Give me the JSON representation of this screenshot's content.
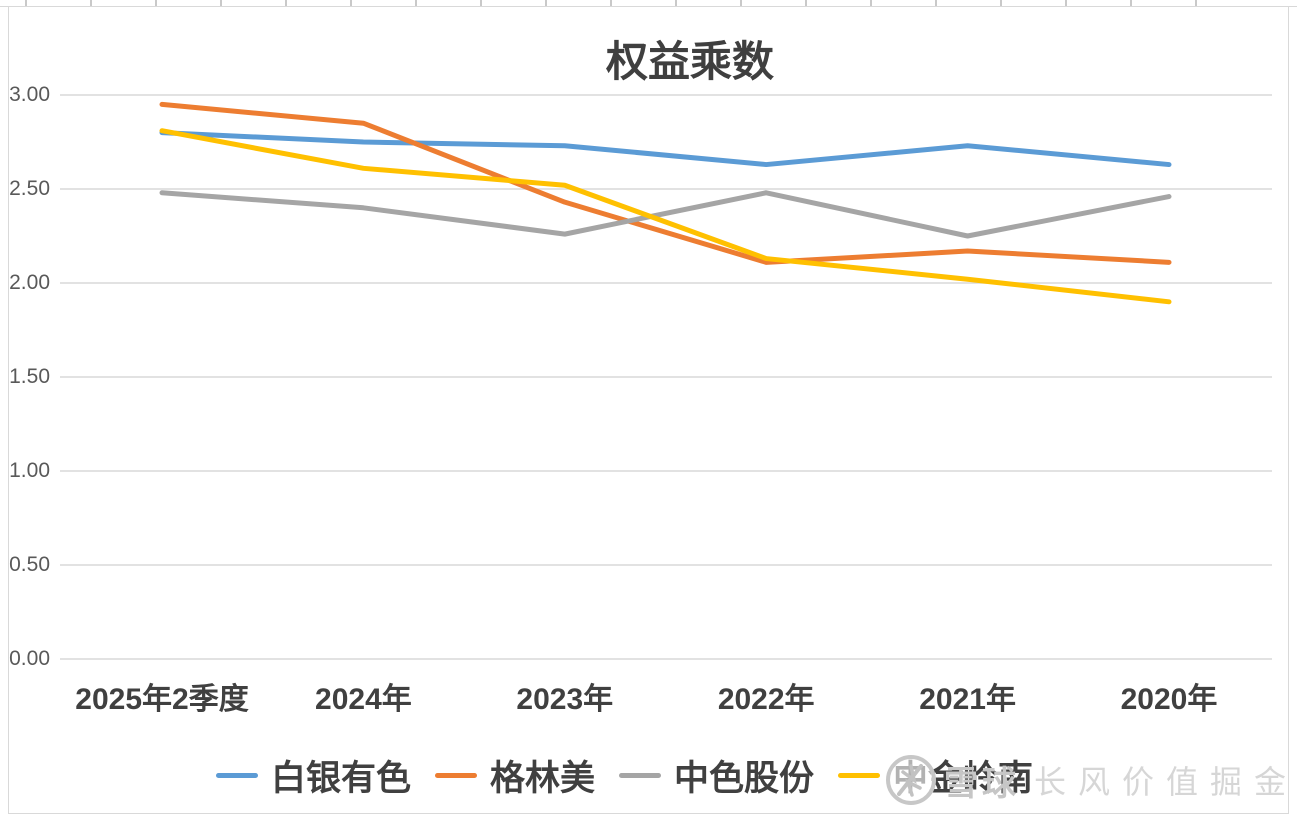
{
  "chart_data": {
    "type": "line",
    "title": "权益乘数",
    "categories": [
      "2025年2季度",
      "2024年",
      "2023年",
      "2022年",
      "2021年",
      "2020年"
    ],
    "series": [
      {
        "name": "白银有色",
        "color": "#5B9BD5",
        "values": [
          2.8,
          2.75,
          2.73,
          2.63,
          2.73,
          2.63
        ]
      },
      {
        "name": "格林美",
        "color": "#ED7D31",
        "values": [
          2.95,
          2.85,
          2.43,
          2.11,
          2.17,
          2.11
        ]
      },
      {
        "name": "中色股份",
        "color": "#A5A5A5",
        "values": [
          2.48,
          2.4,
          2.26,
          2.48,
          2.25,
          2.46
        ]
      },
      {
        "name": "中金岭南",
        "color": "#FFC000",
        "values": [
          2.81,
          2.61,
          2.52,
          2.13,
          2.02,
          1.9
        ]
      }
    ],
    "y_ticks": [
      "3.00",
      "2.50",
      "2.00",
      "1.50",
      "1.00",
      "0.50",
      "0.00"
    ],
    "ylim": [
      0.0,
      3.0
    ],
    "y_step": 0.5,
    "grid": true,
    "gridline_color": "#d9d9d9",
    "legend_position": "bottom",
    "line_width": 5
  },
  "watermark": {
    "logo_icon": "snowball-logo",
    "brand": "雪球",
    "username": "长风价值掘金"
  }
}
